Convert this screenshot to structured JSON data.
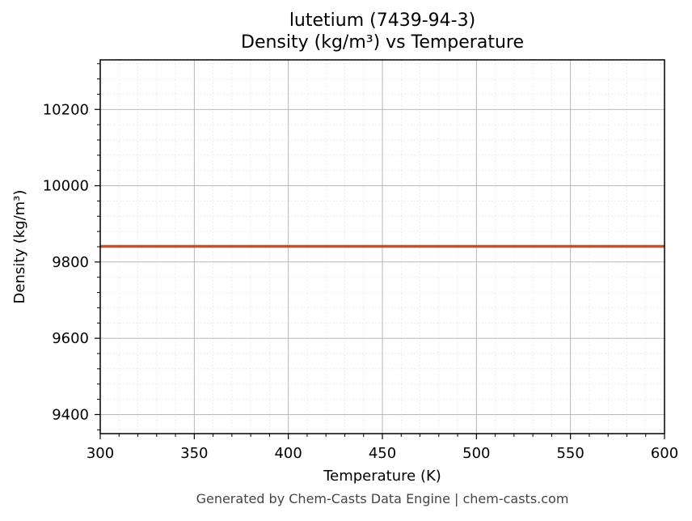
{
  "chart_data": {
    "type": "line",
    "title_line1": "lutetium (7439-94-3)",
    "title_line2": "Density (kg/m³) vs Temperature",
    "xlabel": "Temperature (K)",
    "ylabel": "Density (kg/m³)",
    "xlim": [
      300,
      600
    ],
    "ylim": [
      9350,
      10330
    ],
    "x_ticks": [
      300,
      350,
      400,
      450,
      500,
      550,
      600
    ],
    "y_ticks": [
      9400,
      9600,
      9800,
      10000,
      10200
    ],
    "grid": true,
    "series": [
      {
        "color": "#c8502a",
        "x": [
          300,
          350,
          400,
          450,
          500,
          550,
          600
        ],
        "y": [
          9841,
          9841,
          9841,
          9841,
          9841,
          9841,
          9841
        ]
      }
    ]
  },
  "footer": "Generated by Chem-Casts Data Engine | chem-casts.com"
}
